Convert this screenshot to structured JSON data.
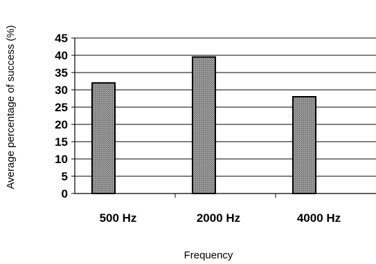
{
  "chart_data": {
    "type": "bar",
    "categories": [
      "500 Hz",
      "2000 Hz",
      "4000 Hz"
    ],
    "values": [
      32,
      39.5,
      28
    ],
    "title": "",
    "xlabel": "Frequency",
    "ylabel": "Average percentage of success (%)",
    "ylim": [
      0,
      45
    ],
    "yticks": [
      0,
      5,
      10,
      15,
      20,
      25,
      30,
      35,
      40,
      45
    ],
    "grid": true,
    "legend": "none",
    "colors": {
      "bar_fill": "#8c8c8c",
      "bar_stroke": "#000000",
      "grid": "#000000",
      "axis": "#000000"
    }
  }
}
